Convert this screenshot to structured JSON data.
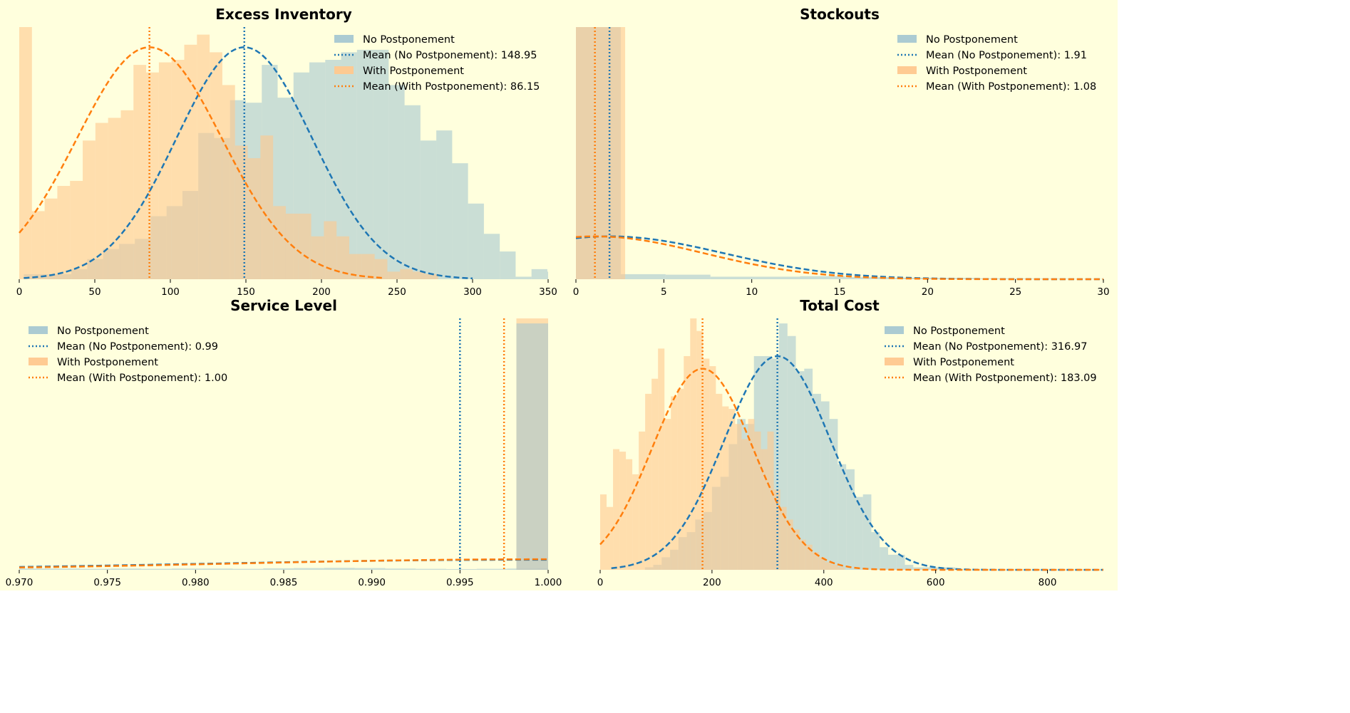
{
  "figure": {
    "background": "#ffffdd",
    "colors": {
      "no_postponement": "#1f77b4",
      "no_postponement_fill": "#a6c8d1",
      "with_postponement": "#ff7f0e",
      "with_postponement_fill": "#ffc88e",
      "overlap_fill": "#c8aa82"
    }
  },
  "chart_data": [
    {
      "id": "excess-inventory",
      "type": "histogram",
      "title": "Excess Inventory",
      "xlim": [
        0,
        350
      ],
      "xticks": [
        0,
        50,
        100,
        150,
        200,
        250,
        300,
        350
      ],
      "ylim": [
        0,
        1
      ],
      "y_axis_visible": false,
      "legend_position": "top-right",
      "legend": [
        {
          "kind": "patch",
          "series": "no",
          "label": "No Postponement"
        },
        {
          "kind": "line",
          "series": "no",
          "label": "Mean (No Postponement): 148.95"
        },
        {
          "kind": "patch",
          "series": "with",
          "label": "With Postponement"
        },
        {
          "kind": "line",
          "series": "with",
          "label": "Mean (With Postponement): 86.15"
        }
      ],
      "series": [
        {
          "name": "No Postponement",
          "key": "no",
          "bins": {
            "start": 3,
            "width": 10.5,
            "heights": [
              0.02,
              0.02,
              0.02,
              0.04,
              0.08,
              0.12,
              0.14,
              0.16,
              0.25,
              0.29,
              0.35,
              0.58,
              0.56,
              0.71,
              0.7,
              0.85,
              0.72,
              0.82,
              0.86,
              0.87,
              0.9,
              0.91,
              0.91,
              0.77,
              0.69,
              0.55,
              0.59,
              0.46,
              0.3,
              0.18,
              0.11,
              0.01,
              0.04,
              0.03,
              0.03
            ]
          },
          "mean": 148.95,
          "sd": 45,
          "fit_curve": {
            "type": "normal",
            "mu": 148.95,
            "sigma": 45,
            "peak": 0.92,
            "x_range": [
              3,
              300
            ]
          }
        },
        {
          "name": "With Postponement",
          "key": "with",
          "bins": {
            "start": 0,
            "width": 8.4,
            "heights": [
              1.0,
              0.27,
              0.32,
              0.37,
              0.39,
              0.55,
              0.62,
              0.64,
              0.67,
              0.85,
              0.82,
              0.86,
              0.87,
              0.93,
              0.97,
              0.9,
              0.77,
              0.53,
              0.48,
              0.57,
              0.29,
              0.26,
              0.26,
              0.17,
              0.23,
              0.17,
              0.1,
              0.1,
              0.08,
              0.03,
              0.04,
              0.03,
              0.02
            ]
          },
          "mean": 86.15,
          "sd": 48,
          "fit_curve": {
            "type": "normal",
            "mu": 86.15,
            "sigma": 48,
            "peak": 0.92,
            "x_range": [
              0,
              240
            ]
          }
        }
      ]
    },
    {
      "id": "stockouts",
      "type": "histogram",
      "title": "Stockouts",
      "xlim": [
        0,
        30
      ],
      "xticks": [
        0,
        5,
        10,
        15,
        20,
        25,
        30
      ],
      "ylim": [
        0,
        1
      ],
      "y_axis_visible": false,
      "legend_position": "top-right",
      "legend": [
        {
          "kind": "patch",
          "series": "no",
          "label": "No Postponement"
        },
        {
          "kind": "line",
          "series": "no",
          "label": "Mean (No Postponement): 1.91"
        },
        {
          "kind": "patch",
          "series": "with",
          "label": "With Postponement"
        },
        {
          "kind": "line",
          "series": "with",
          "label": "Mean (With Postponement): 1.08"
        }
      ],
      "series": [
        {
          "name": "No Postponement",
          "key": "no",
          "bins": {
            "start": 0,
            "width": 2.55,
            "heights": [
              1.0,
              0.02,
              0.018,
              0.01,
              0.01,
              0.012,
              0.008,
              0.006,
              0.005,
              0.003,
              0.002,
              0.001
            ]
          },
          "mean": 1.91,
          "sd": 6.5,
          "fit_curve": {
            "type": "normal",
            "mu": 1.91,
            "sigma": 6.5,
            "peak": 0.17,
            "x_range": [
              0,
              30
            ]
          }
        },
        {
          "name": "With Postponement",
          "key": "with",
          "bins": {
            "start": 0,
            "width": 2.8,
            "heights": [
              1.0
            ]
          },
          "mean": 1.08,
          "sd": 6.2,
          "fit_curve": {
            "type": "normal",
            "mu": 1.08,
            "sigma": 6.2,
            "peak": 0.17,
            "x_range": [
              0,
              30
            ]
          }
        }
      ]
    },
    {
      "id": "service-level",
      "type": "histogram",
      "title": "Service Level",
      "xlim": [
        0.97,
        1.0
      ],
      "xticks": [
        0.97,
        0.975,
        0.98,
        0.985,
        0.99,
        0.995,
        1.0
      ],
      "xtick_labels": [
        "0.970",
        "0.975",
        "0.980",
        "0.985",
        "0.990",
        "0.995",
        "1.000"
      ],
      "ylim": [
        0,
        1
      ],
      "y_axis_visible": false,
      "legend_position": "top-left",
      "legend": [
        {
          "kind": "patch",
          "series": "no",
          "label": "No Postponement"
        },
        {
          "kind": "line",
          "series": "no",
          "label": "Mean (No Postponement): 0.99"
        },
        {
          "kind": "patch",
          "series": "with",
          "label": "With Postponement"
        },
        {
          "kind": "line",
          "series": "with",
          "label": "Mean (With Postponement): 1.00"
        }
      ],
      "series": [
        {
          "name": "No Postponement",
          "key": "no",
          "bins": {
            "start": 0.97,
            "width": 0.00173,
            "heights": [
              0.005,
              0.005,
              0.004,
              0.005,
              0.004,
              0.005,
              0.005,
              0.004,
              0.006,
              0.007,
              0.008,
              0.007,
              0.005,
              0.004,
              0.003,
              0.004,
              0.005,
              0.006
            ]
          },
          "mean": 0.995,
          "sd": 0.012,
          "fit_curve": {
            "type": "normal",
            "mu": 0.9985,
            "sigma": 0.018,
            "peak": 0.04,
            "x_range": [
              0.97,
              1.0
            ]
          }
        },
        {
          "name": "With Postponement",
          "key": "with",
          "bins": {
            "start": 0.9982,
            "width": 0.0018,
            "heights": [
              1.0
            ]
          },
          "mean": 0.9975,
          "sd": 0.012,
          "fit_curve": {
            "type": "normal",
            "mu": 0.9995,
            "sigma": 0.017,
            "peak": 0.042,
            "x_range": [
              0.97,
              1.0
            ]
          }
        }
      ],
      "extra_bars": [
        {
          "series": "no",
          "x": 0.9982,
          "width": 0.0018,
          "height": 0.98
        }
      ],
      "vlines": [
        {
          "series": "no",
          "x": 0.995
        },
        {
          "series": "with",
          "x": 0.9975
        }
      ]
    },
    {
      "id": "total-cost",
      "type": "histogram",
      "title": "Total Cost",
      "xlim": [
        0,
        900
      ],
      "xticks": [
        0,
        200,
        400,
        600,
        800
      ],
      "ylim": [
        0,
        1
      ],
      "y_axis_visible": false,
      "legend_position": "top-right",
      "legend": [
        {
          "kind": "patch",
          "series": "no",
          "label": "No Postponement"
        },
        {
          "kind": "line",
          "series": "no",
          "label": "Mean (No Postponement): 316.97"
        },
        {
          "kind": "patch",
          "series": "with",
          "label": "With Postponement"
        },
        {
          "kind": "line",
          "series": "with",
          "label": "Mean (With Postponement): 183.09"
        }
      ],
      "series": [
        {
          "name": "No Postponement",
          "key": "no",
          "bins": {
            "start": 80,
            "width": 15,
            "heights": [
              0.01,
              0.02,
              0.05,
              0.08,
              0.13,
              0.15,
              0.2,
              0.23,
              0.33,
              0.37,
              0.5,
              0.6,
              0.58,
              0.85,
              0.85,
              0.84,
              0.98,
              0.93,
              0.79,
              0.8,
              0.7,
              0.67,
              0.6,
              0.42,
              0.4,
              0.29,
              0.3,
              0.15,
              0.09,
              0.06,
              0.06,
              0.02,
              0.01,
              0.01,
              0.01,
              0.01,
              0.01
            ]
          },
          "mean": 316.97,
          "sd": 95,
          "fit_curve": {
            "type": "normal",
            "mu": 316.97,
            "sigma": 95,
            "peak": 0.85,
            "x_range": [
              20,
              900
            ]
          }
        },
        {
          "name": "With Postponement",
          "key": "with",
          "bins": {
            "start": 0,
            "width": 11.5,
            "heights": [
              0.3,
              0.25,
              0.48,
              0.47,
              0.44,
              0.38,
              0.55,
              0.7,
              0.76,
              0.88,
              0.6,
              0.69,
              0.72,
              0.85,
              1.0,
              0.95,
              0.84,
              0.81,
              0.7,
              0.65,
              0.64,
              0.58,
              0.52,
              0.6,
              0.55,
              0.48,
              0.55,
              0.32,
              0.25,
              0.2,
              0.16,
              0.12,
              0.1,
              0.07,
              0.05,
              0.03,
              0.02,
              0.01
            ]
          },
          "mean": 183.09,
          "sd": 90,
          "fit_curve": {
            "type": "normal",
            "mu": 183.09,
            "sigma": 90,
            "peak": 0.8,
            "x_range": [
              0,
              900
            ]
          }
        }
      ]
    }
  ]
}
